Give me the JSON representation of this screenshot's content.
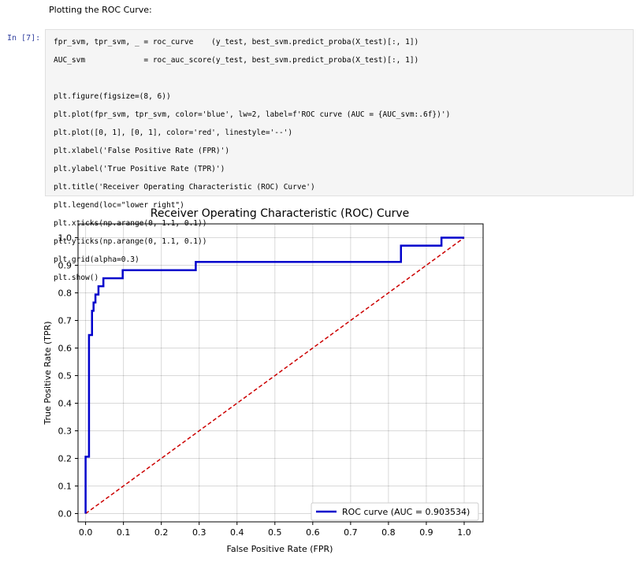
{
  "markdown": {
    "text": "Plotting the ROC Curve:"
  },
  "cell": {
    "prompt": "In [7]:",
    "code_lines": [
      "fpr_svm, tpr_svm, _ = roc_curve    (y_test, best_svm.predict_proba(X_test)[:, 1])",
      "AUC_svm             = roc_auc_score(y_test, best_svm.predict_proba(X_test)[:, 1])",
      "",
      "plt.figure(figsize=(8, 6))",
      "plt.plot(fpr_svm, tpr_svm, color='blue', lw=2, label=f'ROC curve (AUC = {AUC_svm:.6f})')",
      "plt.plot([0, 1], [0, 1], color='red', linestyle='--')",
      "plt.xlabel('False Positive Rate (FPR)')",
      "plt.ylabel('True Positive Rate (TPR)')",
      "plt.title('Receiver Operating Characteristic (ROC) Curve')",
      "plt.legend(loc=\"lower right\")",
      "plt.xticks(np.arange(0, 1.1, 0.1))",
      "plt.yticks(np.arange(0, 1.1, 0.1))",
      "plt.grid(alpha=0.3)",
      "plt.show()"
    ]
  },
  "chart_data": {
    "type": "line",
    "title": "Receiver Operating Characteristic (ROC) Curve",
    "xlabel": "False Positive Rate (FPR)",
    "ylabel": "True Positive Rate (TPR)",
    "xlim": [
      -0.02,
      1.05
    ],
    "ylim": [
      -0.03,
      1.05
    ],
    "xticks": [
      "0.0",
      "0.1",
      "0.2",
      "0.3",
      "0.4",
      "0.5",
      "0.6",
      "0.7",
      "0.8",
      "0.9",
      "1.0"
    ],
    "yticks": [
      "0.0",
      "0.1",
      "0.2",
      "0.3",
      "0.4",
      "0.5",
      "0.6",
      "0.7",
      "0.8",
      "0.9",
      "1.0"
    ],
    "grid": true,
    "legend_position": "lower right",
    "series": [
      {
        "name": "ROC curve (AUC = 0.903534)",
        "color": "#0000cc",
        "style": "solid",
        "points": [
          [
            0.0,
            0.0
          ],
          [
            0.0,
            0.206
          ],
          [
            0.009,
            0.206
          ],
          [
            0.009,
            0.647
          ],
          [
            0.017,
            0.647
          ],
          [
            0.017,
            0.735
          ],
          [
            0.021,
            0.735
          ],
          [
            0.021,
            0.765
          ],
          [
            0.026,
            0.765
          ],
          [
            0.026,
            0.794
          ],
          [
            0.034,
            0.794
          ],
          [
            0.034,
            0.824
          ],
          [
            0.047,
            0.824
          ],
          [
            0.047,
            0.853
          ],
          [
            0.098,
            0.853
          ],
          [
            0.098,
            0.882
          ],
          [
            0.291,
            0.882
          ],
          [
            0.291,
            0.912
          ],
          [
            0.833,
            0.912
          ],
          [
            0.833,
            0.971
          ],
          [
            0.94,
            0.971
          ],
          [
            0.94,
            1.0
          ],
          [
            1.0,
            1.0
          ]
        ]
      },
      {
        "color": "#cc0000",
        "style": "dashed",
        "points": [
          [
            0,
            0
          ],
          [
            1,
            1
          ]
        ]
      }
    ]
  }
}
